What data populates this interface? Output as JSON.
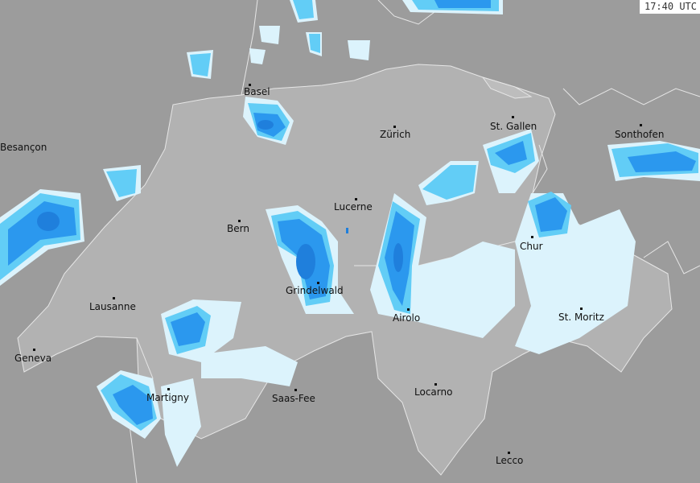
{
  "timestamp": "17:40 UTC",
  "colors": {
    "background": "#9c9c9c",
    "switzerland": "#b2b2b2",
    "border": "#e6e6e6",
    "rain_light": "#dcf3fc",
    "rain_moderate": "#62cdf6",
    "rain_heavy": "#2b98ee",
    "rain_very_heavy": "#1f7fdc"
  },
  "cities": [
    {
      "name": "Basel"
    },
    {
      "name": "Besançon"
    },
    {
      "name": "Zürich"
    },
    {
      "name": "St. Gallen"
    },
    {
      "name": "Sonthofen"
    },
    {
      "name": "Lucerne"
    },
    {
      "name": "Bern"
    },
    {
      "name": "Chur"
    },
    {
      "name": "Grindelwald"
    },
    {
      "name": "Lausanne"
    },
    {
      "name": "Airolo"
    },
    {
      "name": "St. Moritz"
    },
    {
      "name": "Geneva"
    },
    {
      "name": "Martigny"
    },
    {
      "name": "Saas-Fee"
    },
    {
      "name": "Locarno"
    },
    {
      "name": "Lecco"
    }
  ]
}
